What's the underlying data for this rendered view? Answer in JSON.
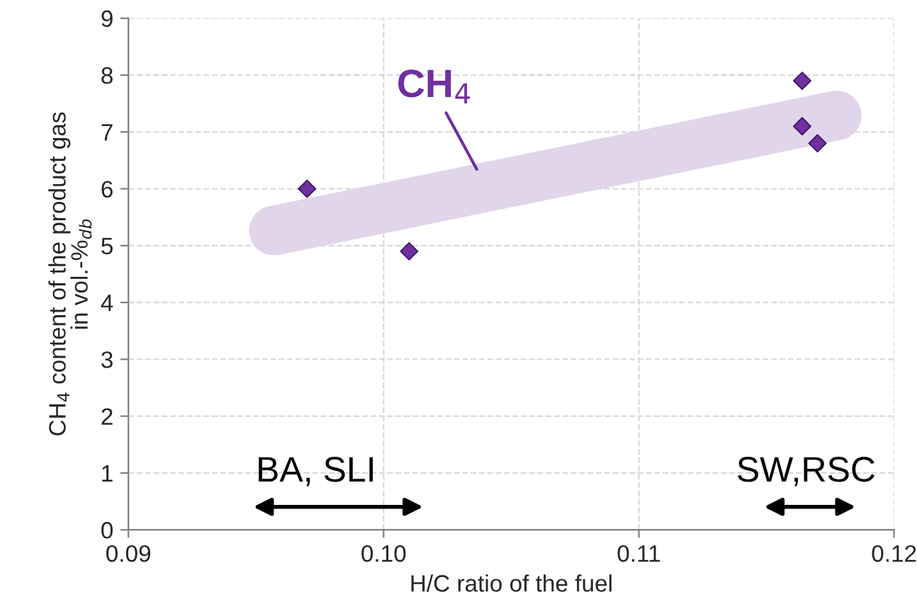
{
  "chart_data": {
    "type": "scatter",
    "xlabel": "H/C ratio of the fuel",
    "ylabel": "CH$_{4}$ content of the product gas\nin vol.-%$_{db}$",
    "x": [
      0.097,
      0.101,
      0.1164,
      0.1164,
      0.117
    ],
    "series": [
      {
        "color": "#7030a0",
        "values": [
          6.0,
          4.9,
          7.9,
          7.1,
          6.8
        ]
      }
    ],
    "marker": "diamond",
    "xlim": [
      0.09,
      0.12
    ],
    "xticks": [
      0.09,
      {
        "value": 0.1,
        "label": "0.10"
      },
      0.11,
      0.12
    ],
    "ylim": [
      0,
      9
    ],
    "yticks": [
      0,
      1,
      2,
      3,
      4,
      5,
      6,
      7,
      8,
      9
    ],
    "grid": true,
    "annotations": [
      "CH$_{4}$",
      "BA, SLI",
      "SW,RSC"
    ]
  }
}
